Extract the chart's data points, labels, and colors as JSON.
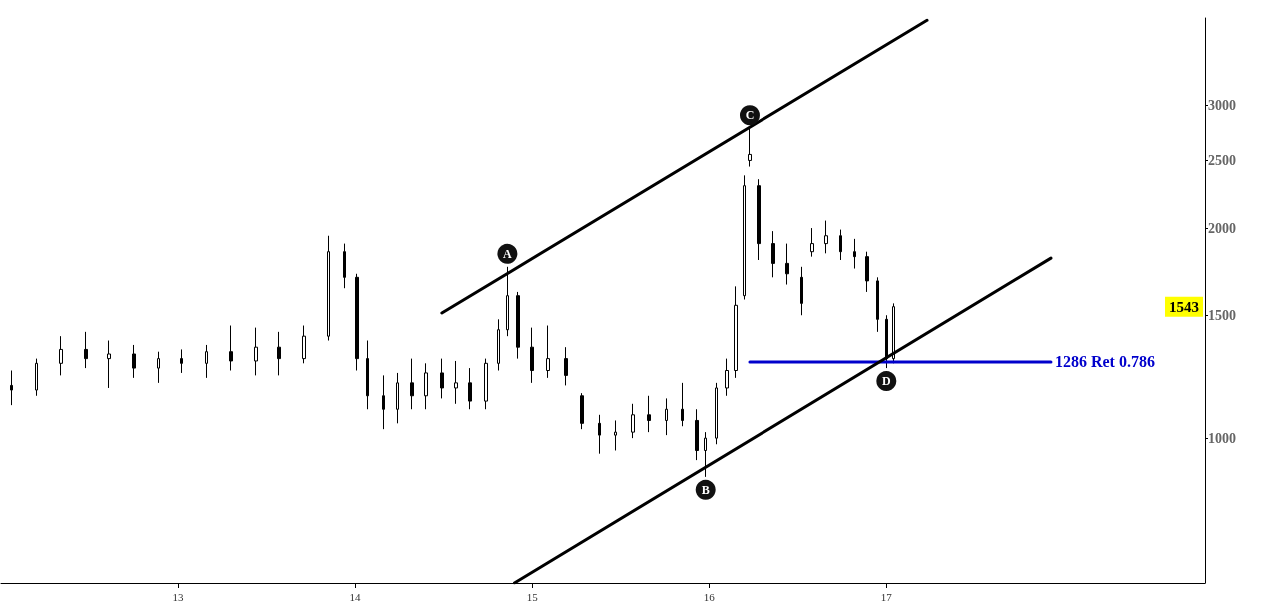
{
  "chart_data": {
    "type": "candlestick",
    "x": [
      12.06,
      12.2,
      12.34,
      12.48,
      12.61,
      12.75,
      12.89,
      13.02,
      13.16,
      13.3,
      13.44,
      13.57,
      13.71,
      13.85,
      13.94,
      14.01,
      14.07,
      14.16,
      14.24,
      14.32,
      14.4,
      14.49,
      14.57,
      14.65,
      14.74,
      14.81,
      14.86,
      14.92,
      15.0,
      15.09,
      15.19,
      15.28,
      15.38,
      15.47,
      15.57,
      15.66,
      15.76,
      15.85,
      15.93,
      15.98,
      16.04,
      16.1,
      16.15,
      16.2,
      16.23,
      16.28,
      16.36,
      16.44,
      16.52,
      16.58,
      16.66,
      16.74,
      16.82,
      16.89,
      16.95,
      17.0,
      17.04
    ],
    "ohlc": [
      [
        1190,
        1250,
        1115,
        1172
      ],
      [
        1172,
        1300,
        1150,
        1280
      ],
      [
        1280,
        1400,
        1230,
        1340
      ],
      [
        1340,
        1420,
        1260,
        1300
      ],
      [
        1300,
        1380,
        1180,
        1320
      ],
      [
        1320,
        1360,
        1220,
        1260
      ],
      [
        1260,
        1330,
        1200,
        1300
      ],
      [
        1300,
        1340,
        1240,
        1280
      ],
      [
        1280,
        1360,
        1220,
        1330
      ],
      [
        1330,
        1450,
        1250,
        1290
      ],
      [
        1290,
        1440,
        1230,
        1350
      ],
      [
        1350,
        1420,
        1230,
        1300
      ],
      [
        1300,
        1450,
        1280,
        1400
      ],
      [
        1400,
        1950,
        1380,
        1850
      ],
      [
        1850,
        1900,
        1640,
        1700
      ],
      [
        1700,
        1720,
        1250,
        1300
      ],
      [
        1300,
        1380,
        1100,
        1150
      ],
      [
        1150,
        1230,
        1030,
        1100
      ],
      [
        1100,
        1240,
        1050,
        1200
      ],
      [
        1200,
        1300,
        1100,
        1150
      ],
      [
        1150,
        1280,
        1100,
        1240
      ],
      [
        1240,
        1300,
        1140,
        1180
      ],
      [
        1180,
        1290,
        1120,
        1200
      ],
      [
        1200,
        1260,
        1100,
        1130
      ],
      [
        1130,
        1300,
        1100,
        1280
      ],
      [
        1280,
        1480,
        1250,
        1430
      ],
      [
        1430,
        1760,
        1400,
        1600
      ],
      [
        1600,
        1620,
        1300,
        1350
      ],
      [
        1350,
        1440,
        1200,
        1250
      ],
      [
        1250,
        1450,
        1220,
        1300
      ],
      [
        1300,
        1350,
        1190,
        1230
      ],
      [
        1150,
        1160,
        1030,
        1050
      ],
      [
        1050,
        1080,
        950,
        1010
      ],
      [
        1010,
        1060,
        960,
        1020
      ],
      [
        1020,
        1120,
        1000,
        1080
      ],
      [
        1080,
        1150,
        1020,
        1060
      ],
      [
        1060,
        1140,
        1010,
        1100
      ],
      [
        1100,
        1200,
        1040,
        1060
      ],
      [
        1060,
        1100,
        930,
        960
      ],
      [
        960,
        1020,
        880,
        1000
      ],
      [
        1000,
        1200,
        980,
        1180
      ],
      [
        1180,
        1300,
        1150,
        1250
      ],
      [
        1250,
        1650,
        1220,
        1550
      ],
      [
        1600,
        2380,
        1580,
        2300
      ],
      [
        2500,
        2780,
        2450,
        2550
      ],
      [
        2300,
        2350,
        1800,
        1900
      ],
      [
        1900,
        1980,
        1700,
        1780
      ],
      [
        1780,
        1900,
        1660,
        1720
      ],
      [
        1700,
        1760,
        1500,
        1560
      ],
      [
        1850,
        2000,
        1820,
        1900
      ],
      [
        1900,
        2050,
        1840,
        1950
      ],
      [
        1950,
        1990,
        1800,
        1850
      ],
      [
        1850,
        1930,
        1750,
        1820
      ],
      [
        1820,
        1850,
        1620,
        1680
      ],
      [
        1680,
        1700,
        1420,
        1480
      ],
      [
        1480,
        1500,
        1260,
        1300
      ],
      [
        1300,
        1560,
        1280,
        1543
      ]
    ],
    "color": "#000000",
    "series": [
      {
        "type": "line",
        "color": "#000000",
        "x": [
          14.49,
          17.23
        ],
        "values": [
          1511,
          3970
        ]
      },
      {
        "type": "line",
        "color": "#0000cc",
        "x": [
          16.23,
          17.93
        ],
        "values": [
          1286,
          1286
        ]
      },
      {
        "type": "line",
        "color": "#000000",
        "x": [
          14.9,
          17.93
        ],
        "values": [
          620,
          1811
        ]
      }
    ],
    "xlim": [
      12,
      18.8
    ],
    "xticks": [
      13,
      14,
      15,
      16,
      17
    ],
    "ylim": [
      620,
      4000
    ],
    "yticks": [
      1000,
      1500,
      2000,
      2500,
      3000
    ],
    "log": true,
    "grid": false,
    "annotations": [
      {
        "text": "A",
        "x": 14.86,
        "y": 1760
      },
      {
        "text": "B",
        "x": 15.98,
        "y": 880
      },
      {
        "text": "C",
        "x": 16.23,
        "y": 2780
      },
      {
        "text": "D",
        "x": 17.0,
        "y": 1260
      },
      {
        "text": "1286 Ret 0.786",
        "x": 17.93,
        "y": 1286
      },
      "1543"
    ]
  }
}
